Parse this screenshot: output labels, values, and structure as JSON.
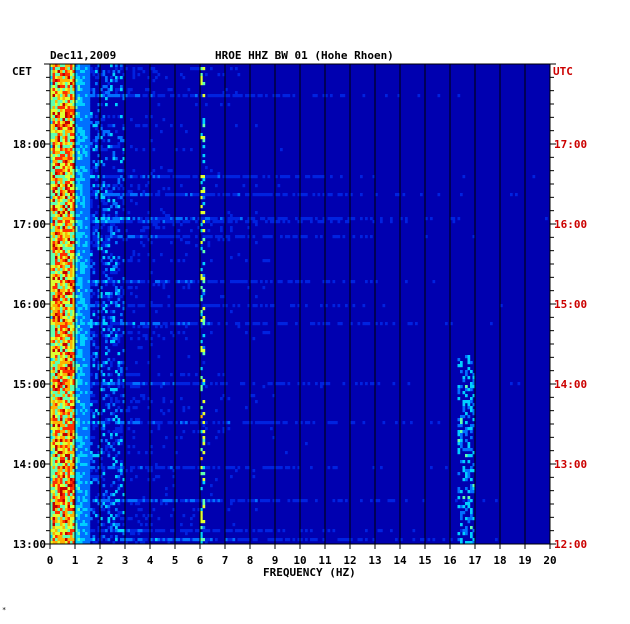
{
  "chart_data": {
    "type": "heatmap",
    "date": "Dec11,2009",
    "title": "HROE HHZ BW 01 (Hohe Rhoen)",
    "xlabel": "FREQUENCY (HZ)",
    "left_axis_label": "CET",
    "right_axis_label": "UTC",
    "xlim": [
      0,
      20
    ],
    "x_ticks": [
      "0",
      "1",
      "2",
      "3",
      "4",
      "5",
      "6",
      "7",
      "8",
      "9",
      "10",
      "11",
      "12",
      "13",
      "14",
      "15",
      "16",
      "17",
      "18",
      "19",
      "20"
    ],
    "time_range_utc_hours": [
      12.0,
      18.0
    ],
    "left_ticks": [
      "13:00",
      "14:00",
      "15:00",
      "16:00",
      "17:00",
      "18:00"
    ],
    "right_ticks": [
      "12:00",
      "13:00",
      "14:00",
      "15:00",
      "16:00",
      "17:00"
    ],
    "grid": true,
    "colorscale": [
      "#0000a0",
      "#0022e0",
      "#0070ff",
      "#00d0ff",
      "#60ffb0",
      "#e0ff30",
      "#ffb000",
      "#ff3000",
      "#c00000"
    ],
    "features": [
      {
        "freq_range_hz": [
          0.1,
          1.0
        ],
        "level": "high",
        "description_shown": "continuous"
      },
      {
        "freq_hz": 6.1,
        "level": "medium"
      },
      {
        "freq_hz": 16.7,
        "level": "low-medium"
      }
    ]
  },
  "corner_mark": "*"
}
